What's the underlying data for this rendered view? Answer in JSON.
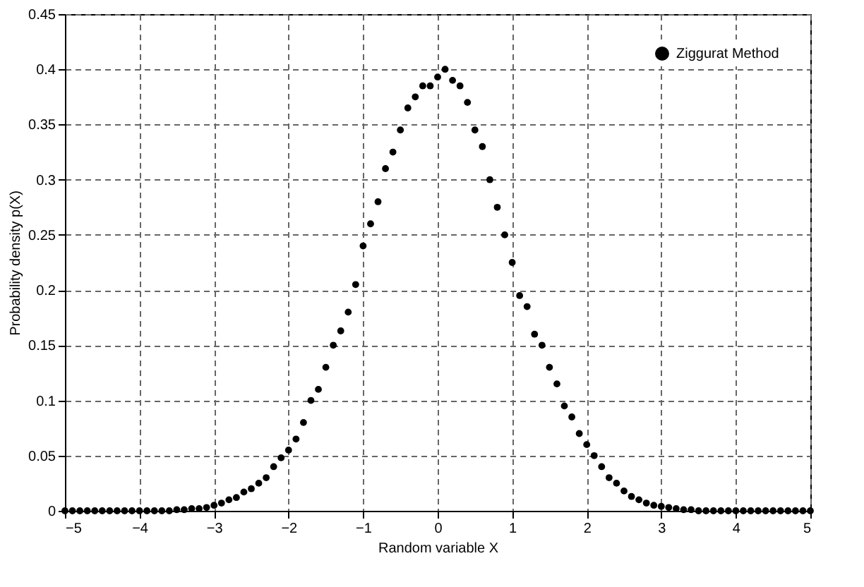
{
  "chart_data": {
    "type": "scatter",
    "xlabel": "Random variable X",
    "ylabel": "Probability density p(X)",
    "x": [
      -5,
      -4.9,
      -4.8,
      -4.7,
      -4.6,
      -4.5,
      -4.4,
      -4.3,
      -4.2,
      -4.1,
      -4,
      -3.9,
      -3.8,
      -3.7,
      -3.6,
      -3.5,
      -3.4,
      -3.3,
      -3.2,
      -3.1,
      -3,
      -2.9,
      -2.8,
      -2.7,
      -2.6,
      -2.5,
      -2.4,
      -2.3,
      -2.2,
      -2.1,
      -2,
      -1.9,
      -1.8,
      -1.7,
      -1.6,
      -1.5,
      -1.4,
      -1.3,
      -1.2,
      -1.1,
      -1,
      -0.9,
      -0.8,
      -0.7,
      -0.6,
      -0.5,
      -0.4,
      -0.3,
      -0.2,
      -0.1,
      0,
      0.1,
      0.2,
      0.3,
      0.4,
      0.5,
      0.6,
      0.7,
      0.8,
      0.9,
      1,
      1.1,
      1.2,
      1.3,
      1.4,
      1.5,
      1.6,
      1.7,
      1.8,
      1.9,
      2,
      2.1,
      2.2,
      2.3,
      2.4,
      2.5,
      2.6,
      2.7,
      2.8,
      2.9,
      3,
      3.1,
      3.2,
      3.3,
      3.4,
      3.5,
      3.6,
      3.7,
      3.8,
      3.9,
      4,
      4.1,
      4.2,
      4.3,
      4.4,
      4.5,
      4.6,
      4.7,
      4.8,
      4.9,
      5
    ],
    "series": [
      {
        "name": "Ziggurat Method",
        "color": "#000000",
        "values": [
          0,
          0,
          0,
          0,
          0,
          0,
          0,
          0,
          0,
          0,
          0,
          0,
          0,
          0,
          0,
          0.001,
          0.001,
          0.002,
          0.002,
          0.003,
          0.005,
          0.007,
          0.01,
          0.012,
          0.017,
          0.02,
          0.025,
          0.03,
          0.04,
          0.048,
          0.055,
          0.065,
          0.08,
          0.1,
          0.11,
          0.13,
          0.15,
          0.163,
          0.18,
          0.205,
          0.24,
          0.26,
          0.28,
          0.31,
          0.325,
          0.345,
          0.365,
          0.375,
          0.385,
          0.385,
          0.393,
          0.4,
          0.39,
          0.385,
          0.37,
          0.345,
          0.33,
          0.3,
          0.275,
          0.25,
          0.225,
          0.195,
          0.185,
          0.16,
          0.15,
          0.13,
          0.115,
          0.095,
          0.085,
          0.07,
          0.06,
          0.05,
          0.04,
          0.03,
          0.025,
          0.018,
          0.013,
          0.01,
          0.007,
          0.005,
          0.004,
          0.003,
          0.002,
          0.001,
          0.001,
          0,
          0,
          0,
          0,
          0,
          0,
          0,
          0,
          0,
          0,
          0,
          0,
          0,
          0,
          0,
          0
        ]
      }
    ],
    "xlim": [
      -5,
      5
    ],
    "xticks": [
      -5,
      -4,
      -3,
      -2,
      -1,
      0,
      1,
      2,
      3,
      4,
      5
    ],
    "ylim": [
      0,
      0.45
    ],
    "yticks": [
      0,
      0.05,
      0.1,
      0.15,
      0.2,
      0.25,
      0.3,
      0.35,
      0.4,
      0.45
    ],
    "grid": true,
    "legend": "top right",
    "marker": "circle"
  }
}
